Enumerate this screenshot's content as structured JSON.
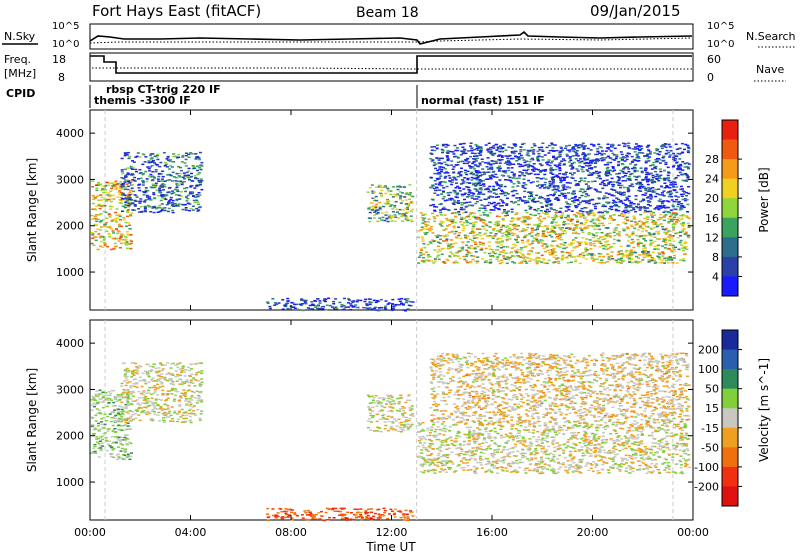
{
  "header": {
    "title": "Fort Hays East (fitACF)",
    "beam": "Beam 18",
    "date": "09/Jan/2015"
  },
  "meta_panel": {
    "nsky_label": "N.Sky",
    "nsearch_label": "N.Search",
    "freq_label_1": "Freq.",
    "freq_label_2": "[MHz]",
    "nave_label": "Nave",
    "cpid_label": "CPID",
    "noise_ticks": [
      "10^5",
      "10^0"
    ],
    "noise_ticks_right": [
      "10^5",
      "10^0"
    ],
    "freq_ticks": [
      "18",
      "8"
    ],
    "nave_ticks": [
      "60",
      "0"
    ]
  },
  "cpid_segments": [
    {
      "text": "rbsp CT-trig 220 IF",
      "start_h": 0.8
    },
    {
      "text": "themis -3300 IF",
      "start_h": 0.0
    },
    {
      "text": "normal (fast) 151 IF",
      "start_h": 13.0
    }
  ],
  "axes": {
    "xlabel": "Time UT",
    "x_ticks": [
      "00:00",
      "04:00",
      "08:00",
      "12:00",
      "16:00",
      "20:00",
      "00:00"
    ],
    "ylabel": "Slant Range [km]",
    "y_ticks": [
      "1000",
      "2000",
      "3000",
      "4000"
    ]
  },
  "power_scale": {
    "label": "Power [dB]",
    "ticks": [
      "4",
      "8",
      "12",
      "16",
      "20",
      "24",
      "28"
    ],
    "colors": [
      "#1a1aff",
      "#2a3fa8",
      "#2d6e8c",
      "#3aa35e",
      "#8fd63a",
      "#f0d020",
      "#f59a1a",
      "#f05a10",
      "#e82010"
    ]
  },
  "velocity_scale": {
    "label": "Velocity [m s^-1]",
    "ticks": [
      "200",
      "100",
      "50",
      "15",
      "-15",
      "-50",
      "-100",
      "-200"
    ],
    "colors": [
      "#1a2a9a",
      "#2a5fb0",
      "#2e8a5a",
      "#7fd03a",
      "#c8c8c0",
      "#f0a020",
      "#f07010",
      "#f03010",
      "#e01010"
    ]
  },
  "chart_data": [
    {
      "type": "heatmap",
      "name": "Power",
      "x_range_hours": [
        0,
        24
      ],
      "y_range_km": [
        180,
        4500
      ],
      "regions": [
        {
          "t0": 0.0,
          "t1": 1.6,
          "r0": 1500,
          "r1": 3000,
          "level": 0.65
        },
        {
          "t0": 1.2,
          "t1": 4.4,
          "r0": 2300,
          "r1": 3600,
          "level": 0.25
        },
        {
          "t0": 11.0,
          "t1": 12.8,
          "r0": 2100,
          "r1": 2900,
          "level": 0.45
        },
        {
          "t0": 13.0,
          "t1": 23.8,
          "r0": 1200,
          "r1": 2300,
          "level": 0.55
        },
        {
          "t0": 13.5,
          "t1": 23.8,
          "r0": 2300,
          "r1": 3800,
          "level": 0.15
        },
        {
          "t0": 7.0,
          "t1": 12.8,
          "r0": 180,
          "r1": 450,
          "level": 0.15
        }
      ]
    },
    {
      "type": "heatmap",
      "name": "Velocity",
      "x_range_hours": [
        0,
        24
      ],
      "y_range_km": [
        180,
        4500
      ],
      "regions": [
        {
          "t0": 0.0,
          "t1": 1.6,
          "r0": 1500,
          "r1": 3000,
          "level": 0.15
        },
        {
          "t0": 1.2,
          "t1": 4.4,
          "r0": 2300,
          "r1": 3600,
          "level": 0.0
        },
        {
          "t0": 11.0,
          "t1": 12.8,
          "r0": 2100,
          "r1": 2900,
          "level": 0.0
        },
        {
          "t0": 13.0,
          "t1": 23.8,
          "r0": 1200,
          "r1": 2300,
          "level": 0.0
        },
        {
          "t0": 13.5,
          "t1": 23.8,
          "r0": 2300,
          "r1": 3800,
          "level": -0.1
        },
        {
          "t0": 7.0,
          "t1": 12.8,
          "r0": 180,
          "r1": 450,
          "level": -0.55
        }
      ]
    }
  ]
}
